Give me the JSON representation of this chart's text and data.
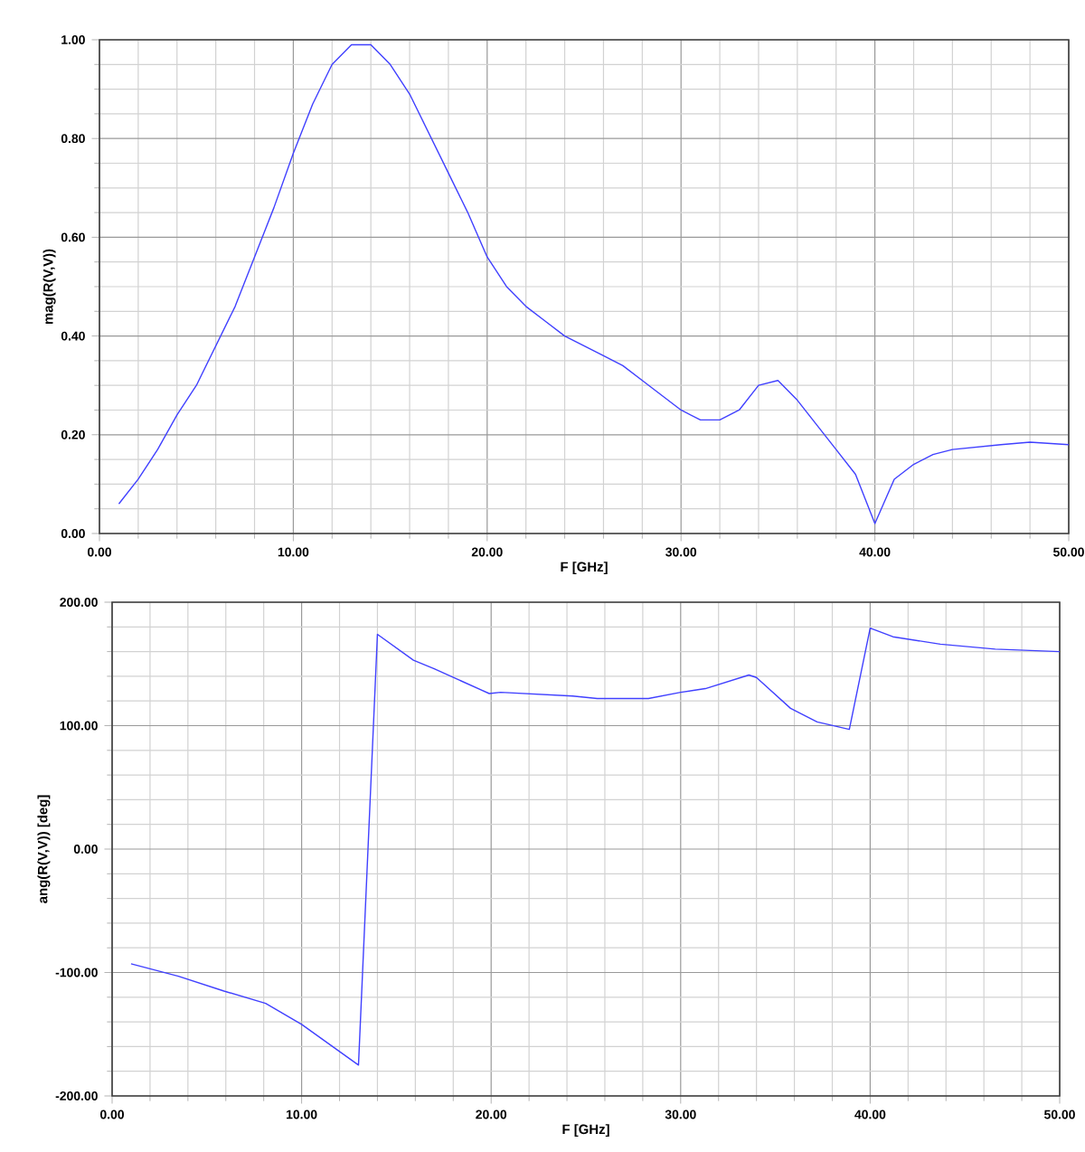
{
  "chart_data": [
    {
      "type": "line",
      "xlabel": "F [GHz]",
      "ylabel": "mag(R(V,V))",
      "grid": true,
      "line_style": "solid",
      "marker": "none",
      "x": [
        1,
        2,
        3,
        4,
        5,
        6,
        7,
        8,
        9,
        10,
        11,
        12,
        13,
        14,
        15,
        16,
        17,
        18,
        19,
        20,
        21,
        22,
        23,
        24,
        26,
        27,
        28,
        30,
        31,
        32,
        33,
        34,
        35,
        36,
        37,
        38,
        39,
        40,
        41,
        42,
        43,
        44,
        46.5,
        48,
        50
      ],
      "series": [
        {
          "color": "#4040ff",
          "values": [
            0.06,
            0.11,
            0.17,
            0.24,
            0.3,
            0.38,
            0.46,
            0.56,
            0.66,
            0.77,
            0.87,
            0.95,
            0.99,
            0.99,
            0.95,
            0.89,
            0.81,
            0.73,
            0.65,
            0.56,
            0.5,
            0.46,
            0.43,
            0.4,
            0.36,
            0.34,
            0.31,
            0.25,
            0.23,
            0.23,
            0.25,
            0.3,
            0.31,
            0.27,
            0.22,
            0.17,
            0.12,
            0.02,
            0.11,
            0.14,
            0.16,
            0.17,
            0.18,
            0.185,
            0.18
          ]
        }
      ],
      "xlim": [
        0,
        50
      ],
      "ylim": [
        0,
        1
      ],
      "xticks": [
        {
          "value": 0,
          "label": "0.00"
        },
        {
          "value": 10,
          "label": "10.00"
        },
        {
          "value": 20,
          "label": "20.00"
        },
        {
          "value": 30,
          "label": "30.00"
        },
        {
          "value": 40,
          "label": "40.00"
        },
        {
          "value": 50,
          "label": "50.00"
        }
      ],
      "yticks": [
        {
          "value": 0,
          "label": "0.00"
        },
        {
          "value": 0.2,
          "label": "0.20"
        },
        {
          "value": 0.4,
          "label": "0.40"
        },
        {
          "value": 0.6,
          "label": "0.60"
        },
        {
          "value": 0.8,
          "label": "0.80"
        },
        {
          "value": 1,
          "label": "1.00"
        }
      ]
    },
    {
      "type": "line",
      "xlabel": "F [GHz]",
      "ylabel": "ang(R(V,V)) [deg]",
      "grid": true,
      "line_style": "solid",
      "marker": "none",
      "x": [
        1,
        3.5,
        5.9,
        8.1,
        10,
        13,
        14,
        15.9,
        17,
        19.9,
        20.5,
        24.3,
        25.6,
        28.3,
        30,
        31.3,
        33.6,
        34,
        35.8,
        37.2,
        38.9,
        40,
        41.2,
        43.7,
        46.6,
        50
      ],
      "series": [
        {
          "color": "#4040ff",
          "values": [
            -93,
            -103,
            -115,
            -125,
            -142,
            -175,
            174,
            153,
            146,
            126,
            127,
            124,
            122,
            122,
            127,
            130,
            141,
            139,
            114,
            103,
            97,
            179,
            172,
            166,
            162,
            160
          ]
        }
      ],
      "xlim": [
        0,
        50
      ],
      "ylim": [
        -200,
        200
      ],
      "xticks": [
        {
          "value": 0,
          "label": "0.00"
        },
        {
          "value": 10,
          "label": "10.00"
        },
        {
          "value": 20,
          "label": "20.00"
        },
        {
          "value": 30,
          "label": "30.00"
        },
        {
          "value": 40,
          "label": "40.00"
        },
        {
          "value": 50,
          "label": "50.00"
        }
      ],
      "yticks": [
        {
          "value": -200,
          "label": "-200.00"
        },
        {
          "value": -100,
          "label": "-100.00"
        },
        {
          "value": 0,
          "label": "0.00"
        },
        {
          "value": 100,
          "label": "100.00"
        },
        {
          "value": 200,
          "label": "200.00"
        }
      ]
    }
  ]
}
